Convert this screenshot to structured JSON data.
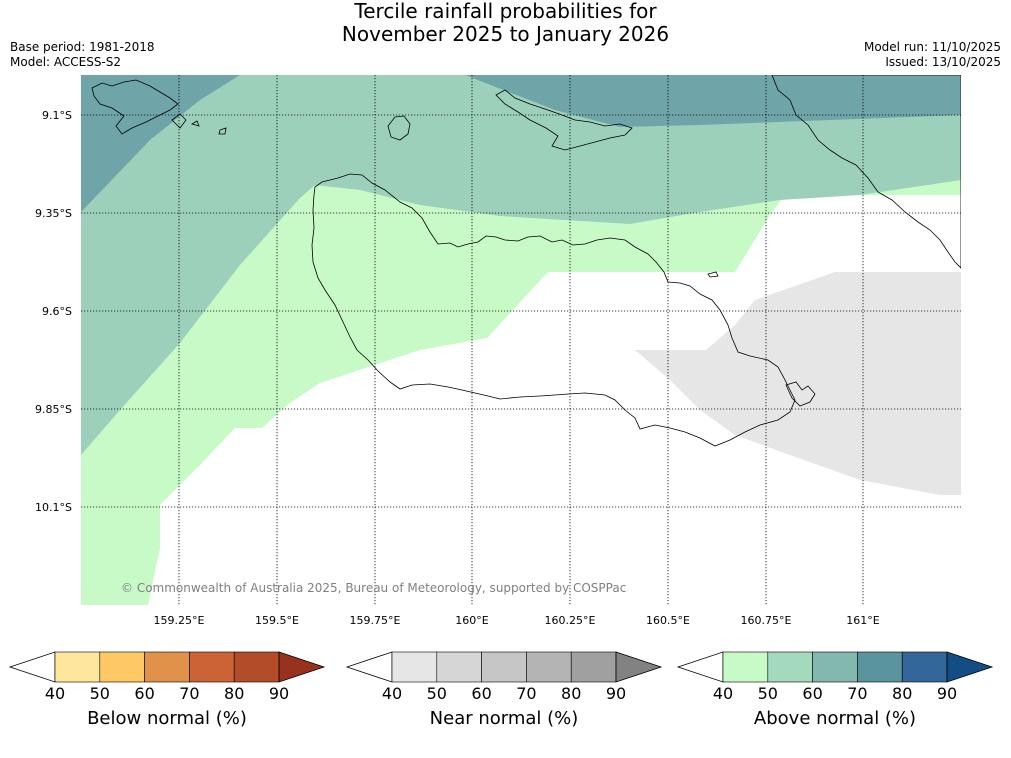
{
  "title_line1": "Tercile rainfall probabilities for",
  "title_line2": "November 2025 to January 2026",
  "base_period": "Base period: 1981-2018",
  "model": "Model: ACCESS-S2",
  "model_run": "Model run: 11/10/2025",
  "issued": "Issued: 13/10/2025",
  "copyright": "© Commonwealth of Australia 2025, Bureau of Meteorology, supported by COSPPac",
  "map": {
    "lat_labels": [
      "9.1°S",
      "9.35°S",
      "9.6°S",
      "9.85°S",
      "10.1°S"
    ],
    "lon_labels": [
      "159.25°E",
      "159.5°E",
      "159.75°E",
      "160°E",
      "160.25°E",
      "160.5°E",
      "160.75°E",
      "161°E"
    ],
    "colors": {
      "above_70": "#6fa5a8",
      "above_50": "#9dd0ba",
      "above_40": "#c8fac8",
      "near_50": "#e6e6e6"
    }
  },
  "colorbars": [
    {
      "label": "Below normal (%)",
      "ticks": [
        "40",
        "50",
        "60",
        "70",
        "80",
        "90"
      ],
      "low": "#ffffff",
      "colors": [
        "#fee79c",
        "#fec965",
        "#e0924a",
        "#cc6336",
        "#b34c29"
      ],
      "high": "#98321f"
    },
    {
      "label": "Near normal (%)",
      "ticks": [
        "40",
        "50",
        "60",
        "70",
        "80",
        "90"
      ],
      "low": "#ffffff",
      "colors": [
        "#e6e6e6",
        "#d6d6d6",
        "#c6c6c6",
        "#b4b4b4",
        "#a0a0a0"
      ],
      "high": "#828282"
    },
    {
      "label": "Above normal (%)",
      "ticks": [
        "40",
        "50",
        "60",
        "70",
        "80",
        "90"
      ],
      "low": "#ffffff",
      "colors": [
        "#c8fac8",
        "#a5d9bd",
        "#82b8ad",
        "#5a949f",
        "#336699"
      ],
      "high": "#124e85"
    }
  ]
}
